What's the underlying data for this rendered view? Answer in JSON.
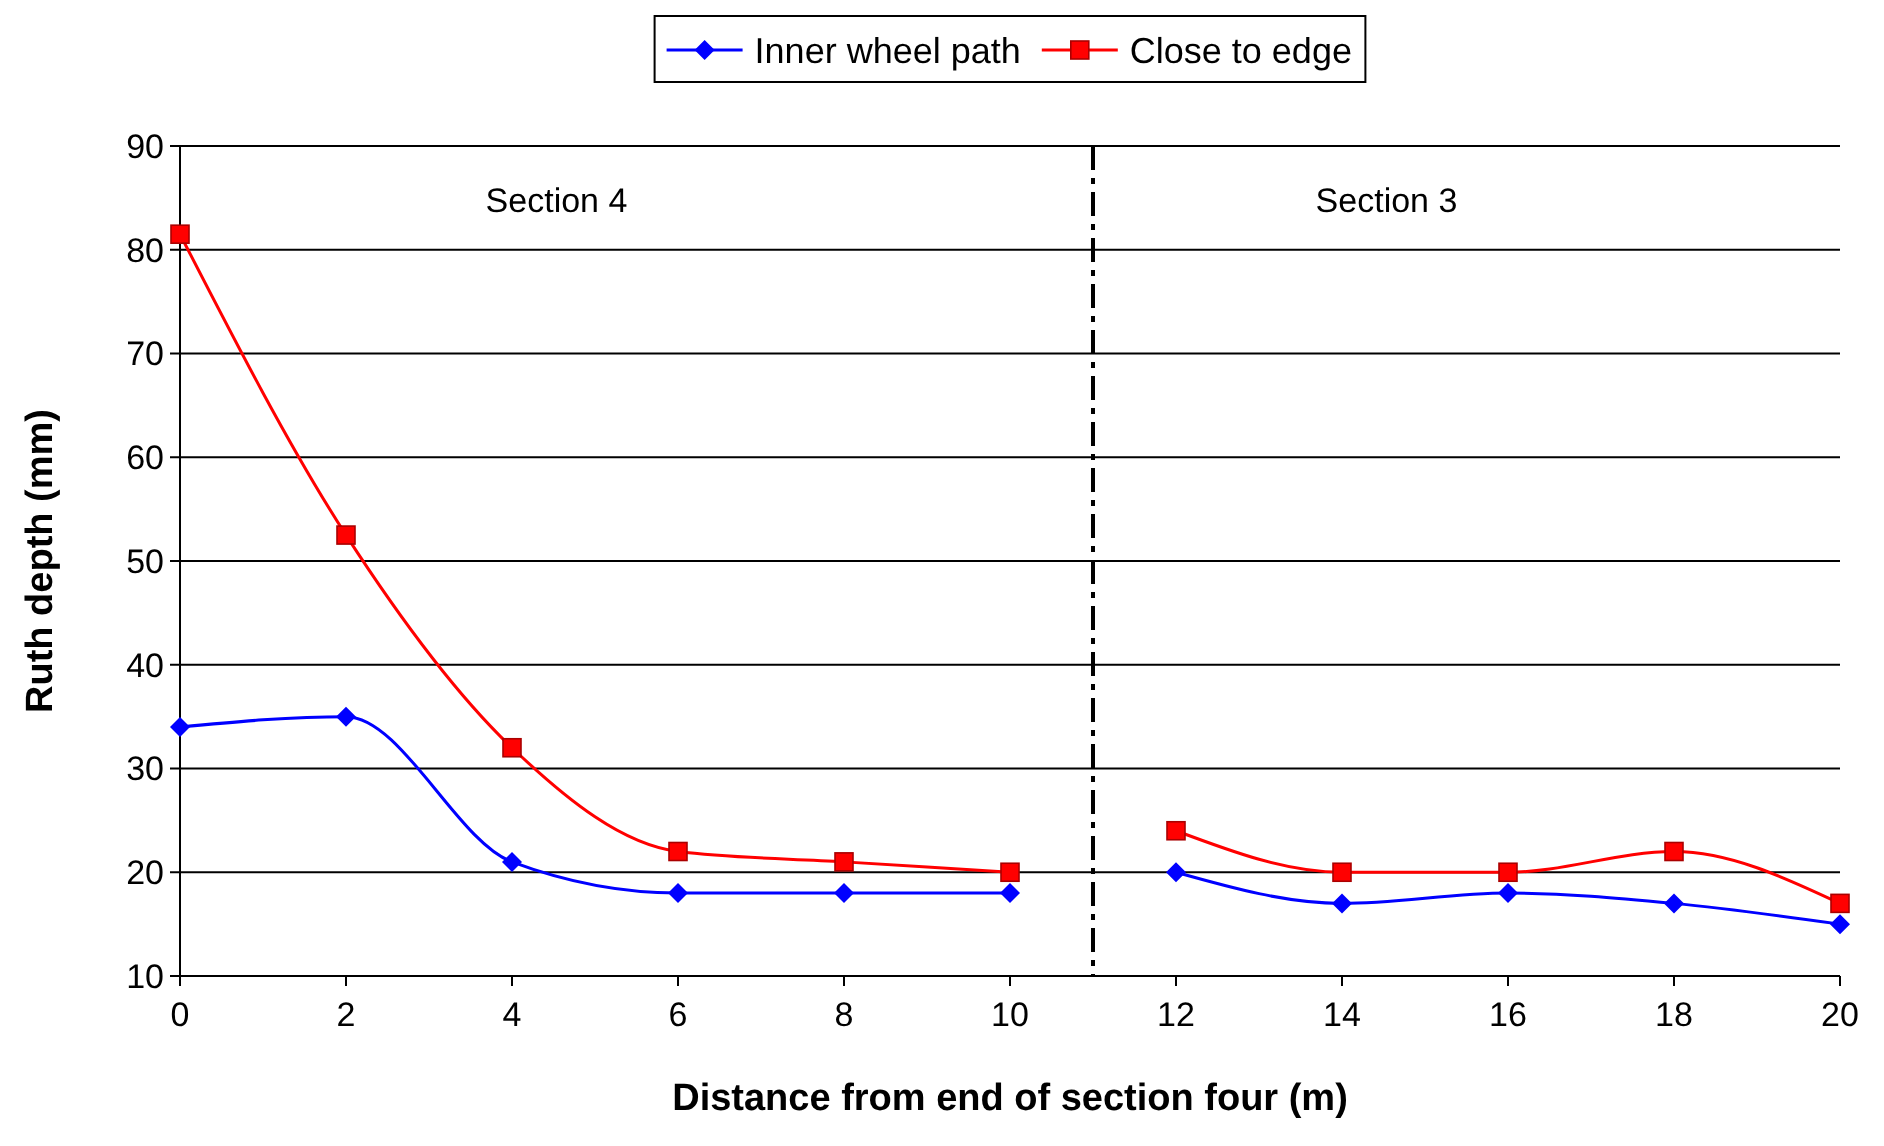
{
  "chart_data": {
    "type": "line",
    "xlabel": "Distance from end of section four (m)",
    "ylabel": "Ruth depth (mm)",
    "x": [
      0,
      2,
      4,
      6,
      8,
      10,
      11,
      12,
      14,
      16,
      18,
      20
    ],
    "series": [
      {
        "name": "Inner wheel path",
        "color": "#0000ff",
        "marker": "diamond",
        "values": [
          34,
          35,
          21,
          18,
          18,
          18,
          null,
          20,
          17,
          18,
          17,
          15
        ]
      },
      {
        "name": "Close to edge",
        "color": "#ff0000",
        "marker": "square",
        "values": [
          81.5,
          52.5,
          32,
          22,
          21,
          20,
          null,
          24,
          20,
          20,
          22,
          17
        ]
      }
    ],
    "xlim": [
      0,
      20
    ],
    "xticks": [
      0,
      2,
      4,
      6,
      8,
      10,
      12,
      14,
      16,
      18,
      20
    ],
    "ylim": [
      10,
      90
    ],
    "yticks": [
      10,
      20,
      30,
      40,
      50,
      60,
      70,
      80,
      90
    ],
    "grid": "y",
    "legend": "top",
    "line_style": "solid",
    "ref_lines": [
      {
        "axis": "x",
        "value": 11,
        "color": "#000000",
        "line_style": "dashed"
      }
    ],
    "annotations": [
      "Section 4",
      "Section 3"
    ]
  }
}
